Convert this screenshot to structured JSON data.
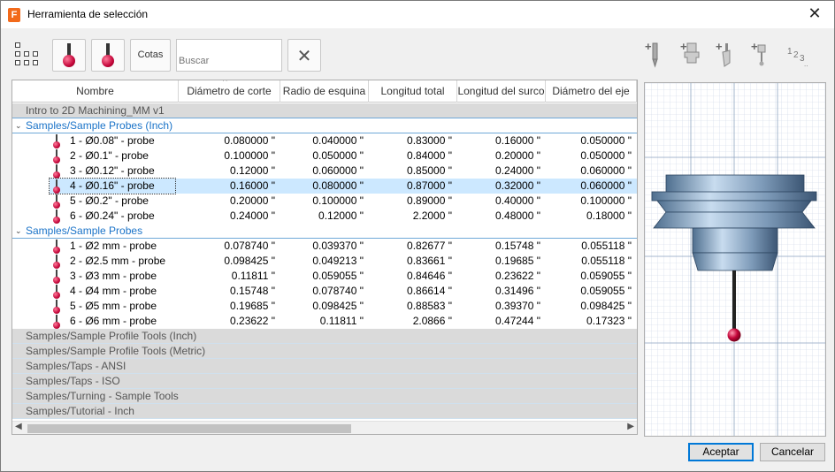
{
  "window": {
    "title": "Herramienta de selección",
    "app_icon_letter": "F"
  },
  "toolbar": {
    "cotas_label": "Cotas",
    "search_placeholder": "Buscar",
    "right_tools": [
      "add-endmill-icon",
      "add-holder-icon",
      "add-insert-icon",
      "add-probe-icon",
      "numbering-icon"
    ],
    "numbering_label": "1 2 3"
  },
  "table": {
    "columns": [
      "Nombre",
      "Diámetro de corte",
      "Radio de esquina",
      "Longitud total",
      "Longitud del surco",
      "Diámetro del eje"
    ],
    "groups": [
      {
        "label": "Intro to 2D Machining_MM v1",
        "expanded": false,
        "rows": []
      },
      {
        "label": "Samples/Sample Probes (Inch)",
        "expanded": true,
        "rows": [
          {
            "name": "1 - Ø0.08\" - probe",
            "cells": [
              "0.080000 \"",
              "0.040000 \"",
              "0.83000 \"",
              "0.16000 \"",
              "0.050000 \""
            ]
          },
          {
            "name": "2 - Ø0.1\" - probe",
            "cells": [
              "0.100000 \"",
              "0.050000 \"",
              "0.84000 \"",
              "0.20000 \"",
              "0.050000 \""
            ]
          },
          {
            "name": "3 - Ø0.12\" - probe",
            "cells": [
              "0.12000 \"",
              "0.060000 \"",
              "0.85000 \"",
              "0.24000 \"",
              "0.060000 \""
            ]
          },
          {
            "name": "4 - Ø0.16\" - probe",
            "cells": [
              "0.16000 \"",
              "0.080000 \"",
              "0.87000 \"",
              "0.32000 \"",
              "0.060000 \""
            ],
            "selected": true
          },
          {
            "name": "5 - Ø0.2\" - probe",
            "cells": [
              "0.20000 \"",
              "0.100000 \"",
              "0.89000 \"",
              "0.40000 \"",
              "0.100000 \""
            ]
          },
          {
            "name": "6 - Ø0.24\" - probe",
            "cells": [
              "0.24000 \"",
              "0.12000 \"",
              "2.2000 \"",
              "0.48000 \"",
              "0.18000 \""
            ]
          }
        ]
      },
      {
        "label": "Samples/Sample Probes",
        "expanded": true,
        "rows": [
          {
            "name": "1 - Ø2 mm - probe",
            "cells": [
              "0.078740 \"",
              "0.039370 \"",
              "0.82677 \"",
              "0.15748 \"",
              "0.055118 \""
            ]
          },
          {
            "name": "2 - Ø2.5 mm - probe",
            "cells": [
              "0.098425 \"",
              "0.049213 \"",
              "0.83661 \"",
              "0.19685 \"",
              "0.055118 \""
            ]
          },
          {
            "name": "3 - Ø3 mm - probe",
            "cells": [
              "0.11811 \"",
              "0.059055 \"",
              "0.84646 \"",
              "0.23622 \"",
              "0.059055 \""
            ]
          },
          {
            "name": "4 - Ø4 mm - probe",
            "cells": [
              "0.15748 \"",
              "0.078740 \"",
              "0.86614 \"",
              "0.31496 \"",
              "0.059055 \""
            ]
          },
          {
            "name": "5 - Ø5 mm - probe",
            "cells": [
              "0.19685 \"",
              "0.098425 \"",
              "0.88583 \"",
              "0.39370 \"",
              "0.098425 \""
            ]
          },
          {
            "name": "6 - Ø6 mm - probe",
            "cells": [
              "0.23622 \"",
              "0.11811 \"",
              "2.0866 \"",
              "0.47244 \"",
              "0.17323 \""
            ]
          }
        ]
      },
      {
        "label": "Samples/Sample Profile Tools (Inch)",
        "expanded": false,
        "rows": []
      },
      {
        "label": "Samples/Sample Profile Tools (Metric)",
        "expanded": false,
        "rows": []
      },
      {
        "label": "Samples/Taps - ANSI",
        "expanded": false,
        "rows": []
      },
      {
        "label": "Samples/Taps - ISO",
        "expanded": false,
        "rows": []
      },
      {
        "label": "Samples/Turning - Sample Tools",
        "expanded": false,
        "rows": []
      },
      {
        "label": "Samples/Tutorial - Inch",
        "expanded": false,
        "rows": []
      }
    ]
  },
  "buttons": {
    "ok": "Aceptar",
    "cancel": "Cancelar"
  },
  "colors": {
    "accent": "#0078d7",
    "selection": "#cce8ff",
    "group_link": "#1a73c8",
    "probe_ball": "#c4063a"
  }
}
